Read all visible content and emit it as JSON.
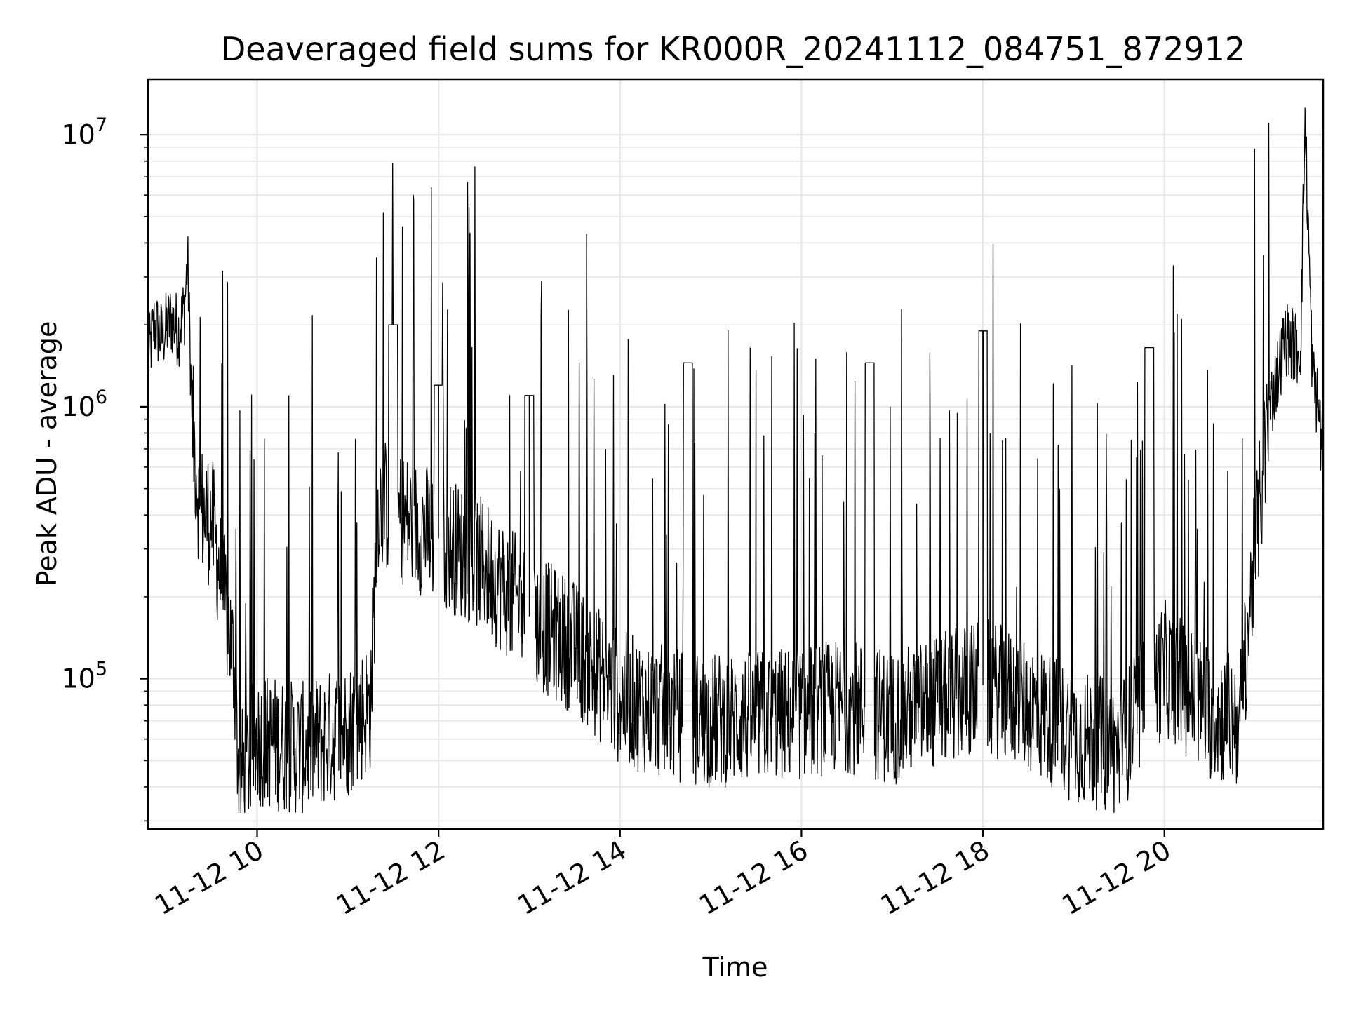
{
  "chart_data": {
    "type": "line",
    "title": "Deaveraged field sums for KR000R_20241112_084751_872912",
    "xlabel": "Time",
    "ylabel": "Peak ADU - average",
    "yscale": "log",
    "ylim": [
      28000,
      16000000
    ],
    "xlim": [
      "2024-11-12 08:47:51",
      "2024-11-12 21:45:00"
    ],
    "grid": "on",
    "line_color": "#000000",
    "x_ticks": [
      {
        "x": "2024-11-12 10:00",
        "label": "11-12 10"
      },
      {
        "x": "2024-11-12 12:00",
        "label": "11-12 12"
      },
      {
        "x": "2024-11-12 14:00",
        "label": "11-12 14"
      },
      {
        "x": "2024-11-12 16:00",
        "label": "11-12 16"
      },
      {
        "x": "2024-11-12 18:00",
        "label": "11-12 18"
      },
      {
        "x": "2024-11-12 20:00",
        "label": "11-12 20"
      }
    ],
    "y_ticks": [
      {
        "value": 100000,
        "base": "10",
        "exp": "5"
      },
      {
        "value": 1000000,
        "base": "10",
        "exp": "6"
      },
      {
        "value": 10000000,
        "base": "10",
        "exp": "7"
      }
    ],
    "series": [
      {
        "points": [
          [
            "2024-11-12 08:48",
            1500000
          ],
          [
            "2024-11-12 08:52",
            2000000
          ],
          [
            "2024-11-12 08:57",
            1800000
          ],
          [
            "2024-11-12 09:03",
            2100000
          ],
          [
            "2024-11-12 09:08",
            1900000
          ],
          [
            "2024-11-12 09:12",
            2300000
          ],
          [
            "2024-11-12 09:14",
            3500000
          ],
          [
            "2024-11-12 09:17",
            900000
          ],
          [
            "2024-11-12 09:22",
            420000
          ],
          [
            "2024-11-12 09:30",
            380000
          ],
          [
            "2024-11-12 09:38",
            200000
          ],
          [
            "2024-11-12 09:45",
            110000
          ],
          [
            "2024-11-12 09:48",
            42000
          ],
          [
            "2024-11-12 10:00",
            60000
          ],
          [
            "2024-11-12 10:30",
            55000
          ],
          [
            "2024-11-12 11:00",
            65000
          ],
          [
            "2024-11-12 11:15",
            80000
          ],
          [
            "2024-11-12 11:20",
            450000
          ],
          [
            "2024-11-12 11:40",
            380000
          ],
          [
            "2024-11-12 12:00",
            330000
          ],
          [
            "2024-11-12 12:30",
            260000
          ],
          [
            "2024-11-12 13:00",
            170000
          ],
          [
            "2024-11-12 13:30",
            130000
          ],
          [
            "2024-11-12 14:00",
            85000
          ],
          [
            "2024-11-12 14:30",
            75000
          ],
          [
            "2024-11-12 15:00",
            70000
          ],
          [
            "2024-11-12 15:30",
            72000
          ],
          [
            "2024-11-12 16:00",
            75000
          ],
          [
            "2024-11-12 16:30",
            80000
          ],
          [
            "2024-11-12 17:00",
            72000
          ],
          [
            "2024-11-12 17:30",
            82000
          ],
          [
            "2024-11-12 18:00",
            95000
          ],
          [
            "2024-11-12 18:30",
            80000
          ],
          [
            "2024-11-12 19:00",
            62000
          ],
          [
            "2024-11-12 19:30",
            55000
          ],
          [
            "2024-11-12 20:00",
            110000
          ],
          [
            "2024-11-12 20:30",
            75000
          ],
          [
            "2024-11-12 20:50",
            70000
          ],
          [
            "2024-11-12 21:00",
            300000
          ],
          [
            "2024-11-12 21:10",
            1000000
          ],
          [
            "2024-11-12 21:20",
            1800000
          ],
          [
            "2024-11-12 21:30",
            1600000
          ],
          [
            "2024-11-12 21:33",
            11500000
          ],
          [
            "2024-11-12 21:38",
            1300000
          ],
          [
            "2024-11-12 21:45",
            800000
          ]
        ],
        "spikes_approx": [
          [
            "2024-11-12 11:30",
            2000000
          ],
          [
            "2024-11-12 12:00",
            1200000
          ],
          [
            "2024-11-12 13:00",
            1100000
          ],
          [
            "2024-11-12 14:45",
            1450000
          ],
          [
            "2024-11-12 16:45",
            1450000
          ],
          [
            "2024-11-12 18:00",
            1900000
          ],
          [
            "2024-11-12 19:50",
            1650000
          ]
        ]
      }
    ]
  }
}
